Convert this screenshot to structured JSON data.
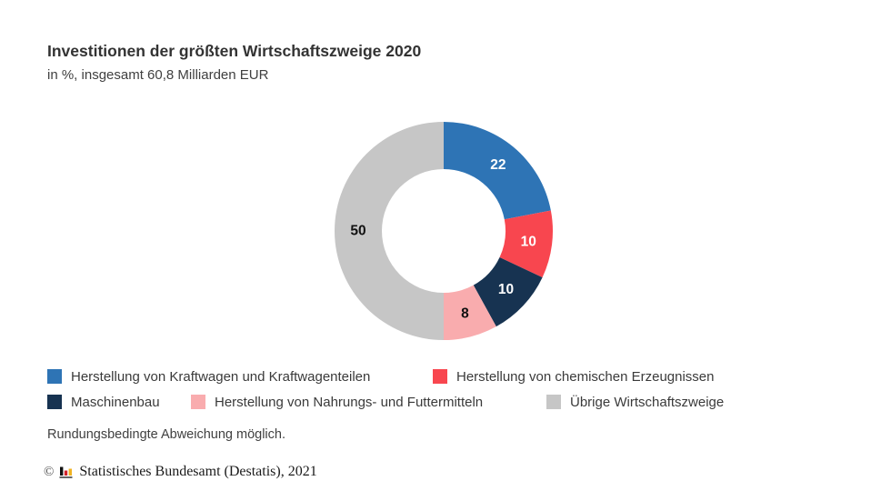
{
  "header": {
    "title": "Investitionen der größten Wirtschaftszweige 2020",
    "subtitle": "in %, insgesamt 60,8 Milliarden EUR"
  },
  "chart_data": {
    "type": "pie",
    "variant": "donut",
    "title": "Investitionen der größten Wirtschaftszweige 2020",
    "subtitle": "in %, insgesamt 60,8 Milliarden EUR",
    "unit": "%",
    "total": "60,8 Milliarden EUR",
    "start_angle_deg": 0,
    "direction": "clockwise",
    "legend_position": "bottom",
    "segments": [
      {
        "label": "Herstellung von Kraftwagen und Kraftwagenteilen",
        "value": 22,
        "value_label": "22",
        "color": "#2e74b5",
        "value_label_color": "#ffffff"
      },
      {
        "label": "Herstellung von chemischen Erzeugnissen",
        "value": 10,
        "value_label": "10",
        "color": "#f8464f",
        "value_label_color": "#ffffff"
      },
      {
        "label": "Maschinenbau",
        "value": 10,
        "value_label": "10",
        "color": "#173351",
        "value_label_color": "#ffffff"
      },
      {
        "label": "Herstellung von Nahrungs- und Futtermitteln",
        "value": 8,
        "value_label": "8",
        "color": "#f9acae",
        "value_label_color": "#111111"
      },
      {
        "label": "Übrige Wirtschaftszweige",
        "value": 50,
        "value_label": "50",
        "color": "#c6c6c6",
        "value_label_color": "#111111"
      }
    ]
  },
  "footer": {
    "note": "Rundungsbedingte Abweichung möglich.",
    "copyright_symbol": "©",
    "copyright": "Statistisches Bundesamt (Destatis), 2021"
  }
}
